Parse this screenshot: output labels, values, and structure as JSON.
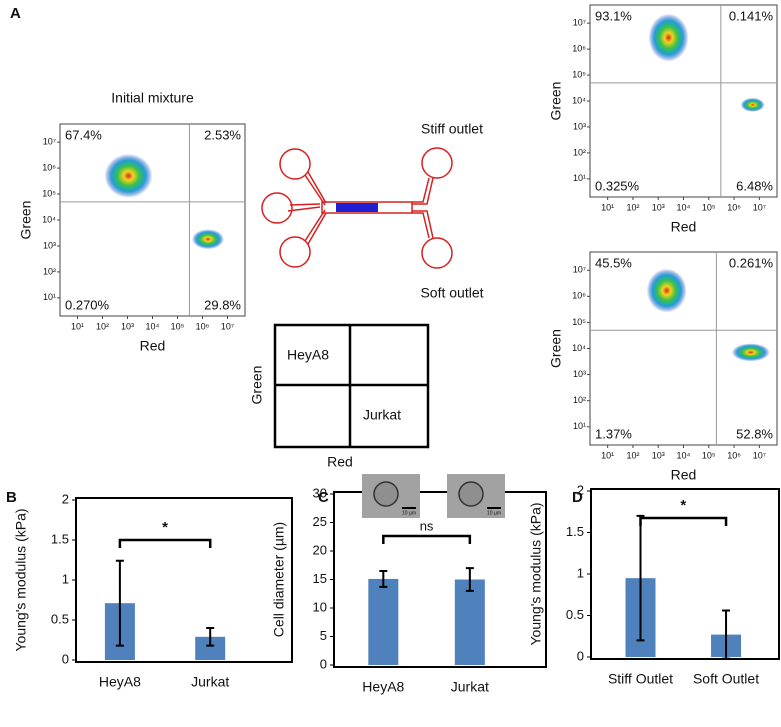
{
  "panel_labels": [
    "A",
    "B",
    "C",
    "D"
  ],
  "diagram": {
    "stiff_outlet": "Stiff outlet",
    "soft_outlet": "Soft outlet",
    "quadrant_key": {
      "upper_left": "HeyA8",
      "lower_right": "Jurkat",
      "ylabel": "Green",
      "xlabel": "Red"
    }
  },
  "chart_data": [
    {
      "type": "scatter",
      "title": "Initial mixture",
      "xlabel": "Red",
      "ylabel": "Green",
      "log_scale": true,
      "xlim": [
        2,
        50000000
      ],
      "ylim": [
        2,
        50000000
      ],
      "xticks": [
        {
          "value": 10,
          "label": "10¹"
        },
        {
          "value": 100,
          "label": "10²"
        },
        {
          "value": 1000,
          "label": "10³"
        },
        {
          "value": 10000,
          "label": "10⁴"
        },
        {
          "value": 100000,
          "label": "10⁵"
        },
        {
          "value": 1000000,
          "label": "10⁶"
        },
        {
          "value": 10000000,
          "label": "10⁷"
        }
      ],
      "yticks": [
        {
          "value": 10,
          "label": "10¹"
        },
        {
          "value": 100,
          "label": "10²"
        },
        {
          "value": 1000,
          "label": "10³"
        },
        {
          "value": 10000,
          "label": "10⁴"
        },
        {
          "value": 100000,
          "label": "10⁵"
        },
        {
          "value": 1000000,
          "label": "10⁶"
        },
        {
          "value": 10000000,
          "label": "10⁷"
        }
      ],
      "gate": {
        "x": 300000,
        "y": 50000
      },
      "quadrants": [
        "67.4%",
        "2.53%",
        "0.270%",
        "29.8%"
      ]
    },
    {
      "type": "scatter",
      "xlabel": "Red",
      "ylabel": "Green",
      "log_scale": true,
      "xlim": [
        2,
        50000000
      ],
      "ylim": [
        2,
        50000000
      ],
      "xticks": [
        {
          "value": 10,
          "label": "10¹"
        },
        {
          "value": 100,
          "label": "10²"
        },
        {
          "value": 1000,
          "label": "10³"
        },
        {
          "value": 10000,
          "label": "10⁴"
        },
        {
          "value": 100000,
          "label": "10⁵"
        },
        {
          "value": 1000000,
          "label": "10⁶"
        },
        {
          "value": 10000000,
          "label": "10⁷"
        }
      ],
      "yticks": [
        {
          "value": 10,
          "label": "10¹"
        },
        {
          "value": 100,
          "label": "10²"
        },
        {
          "value": 1000,
          "label": "10³"
        },
        {
          "value": 10000,
          "label": "10⁴"
        },
        {
          "value": 100000,
          "label": "10⁵"
        },
        {
          "value": 1000000,
          "label": "10⁶"
        },
        {
          "value": 10000000,
          "label": "10⁷"
        }
      ],
      "gate": {
        "x": 300000,
        "y": 50000
      },
      "quadrants": [
        "93.1%",
        "0.141%",
        "0.325%",
        "6.48%"
      ]
    },
    {
      "type": "scatter",
      "xlabel": "Red",
      "ylabel": "Green",
      "log_scale": true,
      "xlim": [
        2,
        50000000
      ],
      "ylim": [
        2,
        50000000
      ],
      "xticks": [
        {
          "value": 10,
          "label": "10¹"
        },
        {
          "value": 100,
          "label": "10²"
        },
        {
          "value": 1000,
          "label": "10³"
        },
        {
          "value": 10000,
          "label": "10⁴"
        },
        {
          "value": 100000,
          "label": "10⁵"
        },
        {
          "value": 1000000,
          "label": "10⁶"
        },
        {
          "value": 10000000,
          "label": "10⁷"
        }
      ],
      "yticks": [
        {
          "value": 10,
          "label": "10¹"
        },
        {
          "value": 100,
          "label": "10²"
        },
        {
          "value": 1000,
          "label": "10³"
        },
        {
          "value": 10000,
          "label": "10⁴"
        },
        {
          "value": 100000,
          "label": "10⁵"
        },
        {
          "value": 1000000,
          "label": "10⁶"
        },
        {
          "value": 10000000,
          "label": "10⁷"
        }
      ],
      "gate": {
        "x": 200000,
        "y": 50000
      },
      "quadrants": [
        "45.5%",
        "0.261%",
        "1.37%",
        "52.8%"
      ]
    },
    {
      "type": "bar",
      "ylabel": "Young's modulus (kPa)",
      "categories": [
        "HeyA8",
        "Jurkat"
      ],
      "values": [
        0.71,
        0.29
      ],
      "errors": [
        0.53,
        0.11
      ],
      "color": "#4f81bd",
      "ylim": [
        0,
        2
      ],
      "yticks": [
        0,
        0.5,
        1,
        1.5,
        2
      ],
      "significance": "*"
    },
    {
      "type": "bar",
      "ylabel": "Cell diameter (µm)",
      "categories": [
        "HeyA8",
        "Jurkat"
      ],
      "values": [
        15.1,
        15.0
      ],
      "errors": [
        1.4,
        2.0
      ],
      "color": "#4f81bd",
      "ylim": [
        0,
        30
      ],
      "yticks": [
        0,
        5,
        10,
        15,
        20,
        25,
        30
      ],
      "significance": "ns",
      "inset_scale": [
        "10 µm",
        "10 µm"
      ]
    },
    {
      "type": "bar",
      "ylabel": "Young's modulus (kPa)",
      "categories": [
        "Stiff Outlet",
        "Soft Outlet"
      ],
      "values": [
        0.95,
        0.27
      ],
      "errors": [
        0.75,
        0.29
      ],
      "color": "#4f81bd",
      "ylim": [
        0,
        2
      ],
      "yticks": [
        0,
        0.5,
        1,
        1.5,
        2
      ],
      "significance": "*"
    }
  ]
}
